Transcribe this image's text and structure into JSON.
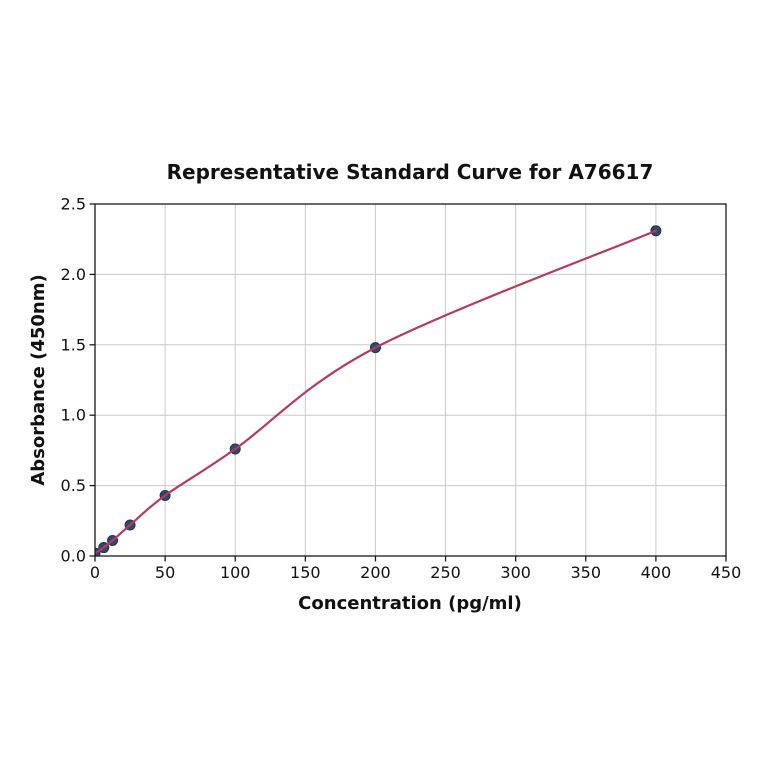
{
  "chart_data": {
    "type": "scatter",
    "title": "Representative Standard Curve for A76617",
    "xlabel": "Concentration (pg/ml)",
    "ylabel": "Absorbance (450nm)",
    "xlim": [
      0,
      450
    ],
    "ylim": [
      0,
      2.5
    ],
    "xticks": [
      0,
      50,
      100,
      150,
      200,
      250,
      300,
      350,
      400,
      450
    ],
    "xtick_labels": [
      "0",
      "50",
      "100",
      "150",
      "200",
      "250",
      "300",
      "350",
      "400",
      "450"
    ],
    "yticks": [
      0,
      0.5,
      1,
      1.5,
      2,
      2.5
    ],
    "ytick_labels": [
      "0.0",
      "0.5",
      "1.0",
      "1.5",
      "2.0",
      "2.5"
    ],
    "grid": true,
    "legend": "none",
    "series": [
      {
        "name": "standard-curve",
        "points": [
          {
            "x": 0,
            "y": 0.02
          },
          {
            "x": 6.25,
            "y": 0.06
          },
          {
            "x": 12.5,
            "y": 0.11
          },
          {
            "x": 25,
            "y": 0.22
          },
          {
            "x": 50,
            "y": 0.43
          },
          {
            "x": 100,
            "y": 0.76
          },
          {
            "x": 200,
            "y": 1.48
          },
          {
            "x": 400,
            "y": 2.31
          }
        ]
      }
    ],
    "colors": {
      "curve": "#b8395c",
      "marker_fill": "#2e4a6b",
      "marker_edge": "#1d3350",
      "grid": "#c9c9c9",
      "axis": "#1a1a1a",
      "text": "#111111",
      "background": "#ffffff"
    }
  }
}
